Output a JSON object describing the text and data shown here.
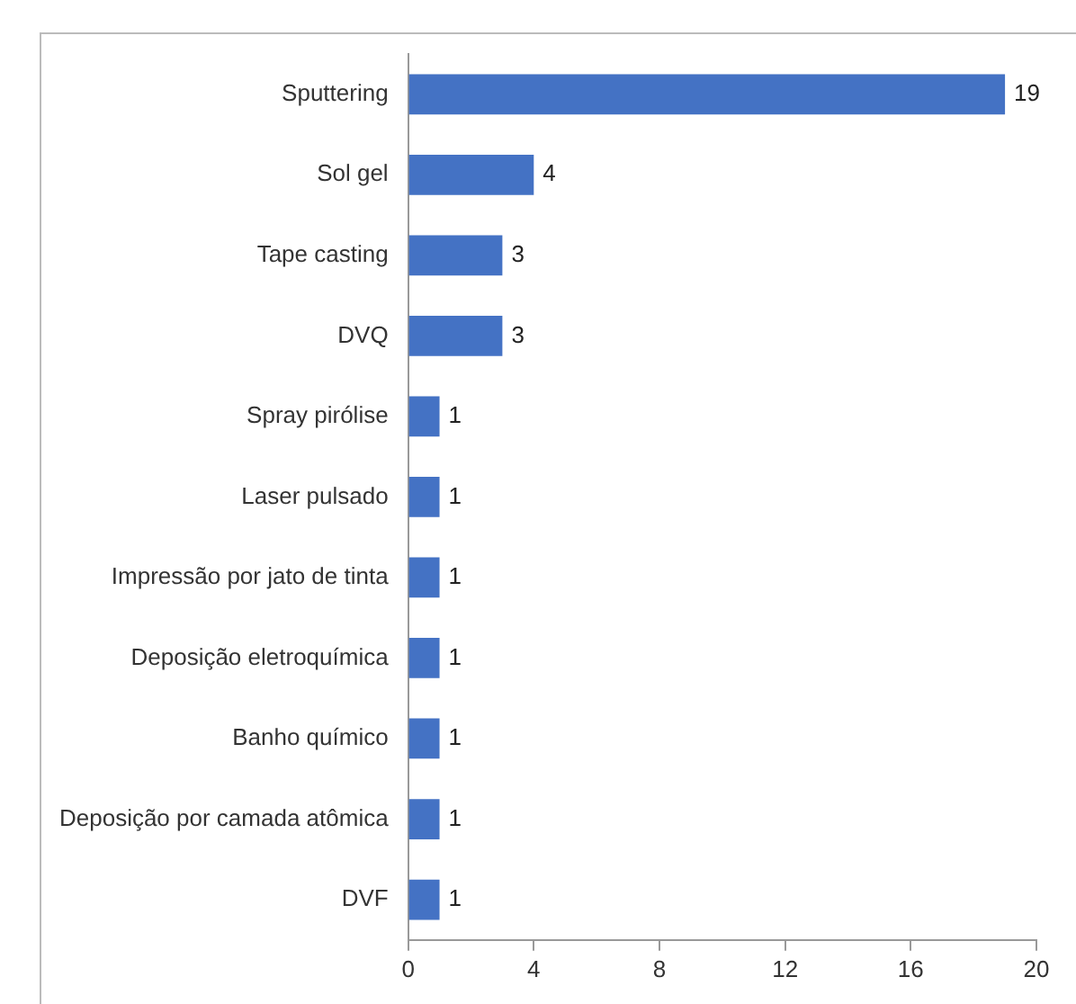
{
  "chart_data": {
    "type": "bar",
    "orientation": "horizontal",
    "categories": [
      "Sputtering",
      "Sol gel",
      "Tape casting",
      "DVQ",
      "Spray pirólise",
      "Laser pulsado",
      "Impressão por jato de tinta",
      "Deposição eletroquímica",
      "Banho químico",
      "Deposição por camada atômica",
      "DVF"
    ],
    "values": [
      19,
      4,
      3,
      3,
      1,
      1,
      1,
      1,
      1,
      1,
      1
    ],
    "color": "#4472c4",
    "xlim": [
      0,
      20
    ],
    "xticks": [
      0,
      4,
      8,
      12,
      16,
      20
    ],
    "grid": false,
    "legend": false,
    "data_labels": true
  }
}
